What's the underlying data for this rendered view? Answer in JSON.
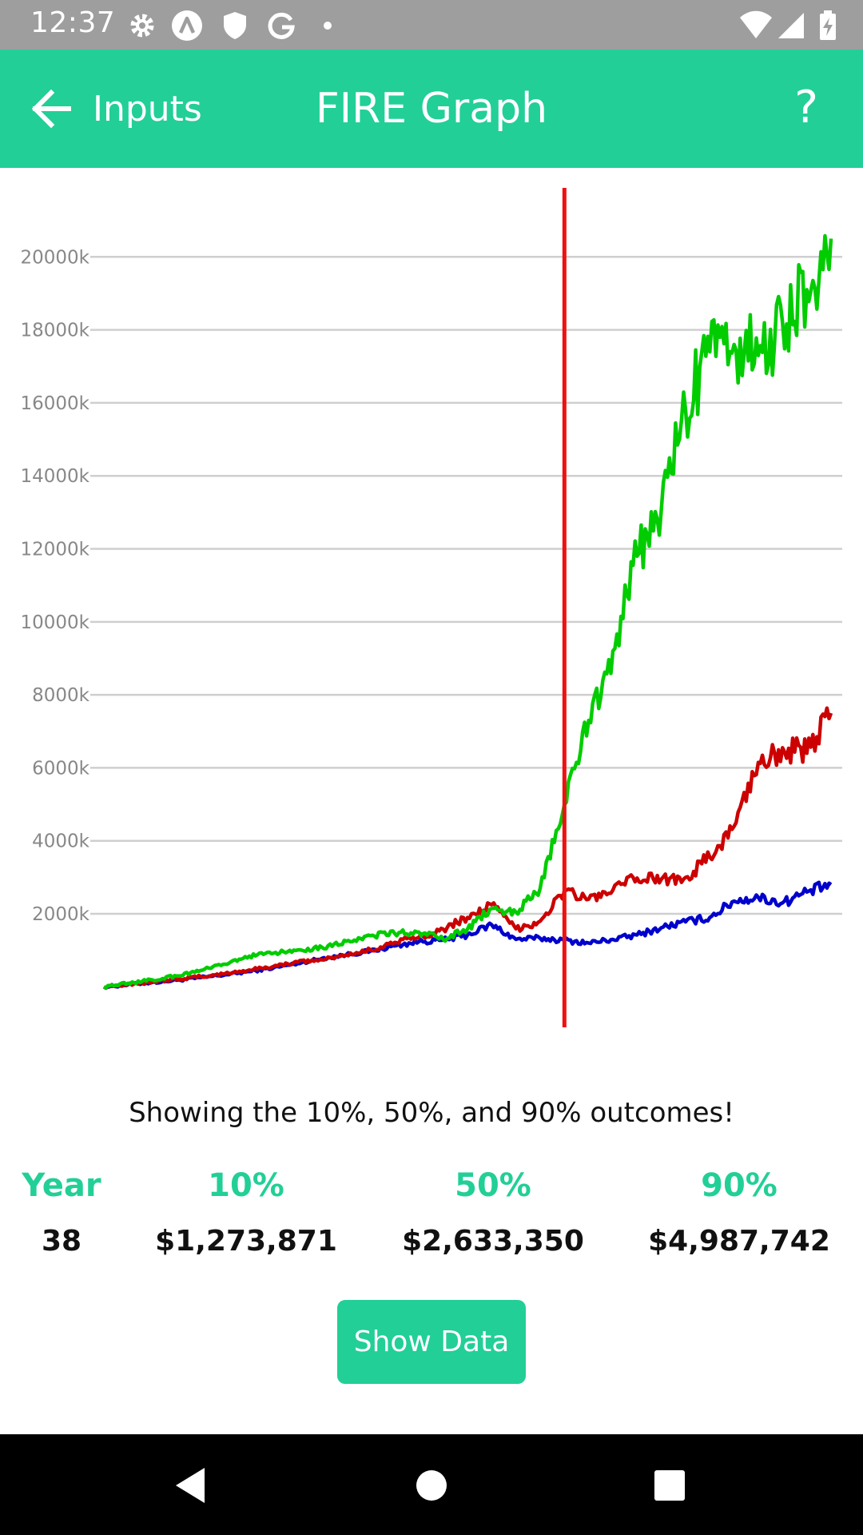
{
  "status_bar": {
    "time": "12:37",
    "icons": [
      "gear-icon",
      "a-circle-icon",
      "shield-icon",
      "google-icon",
      "dot-icon",
      "wifi-icon",
      "signal-icon",
      "battery-charging-icon"
    ]
  },
  "app_bar": {
    "back_label": "Inputs",
    "title": "FIRE Graph",
    "help_label": "?"
  },
  "colors": {
    "accent": "#22cf97",
    "series_10": "#0000cc",
    "series_50": "#cc0000",
    "series_90": "#00cc00",
    "marker": "#ee1111"
  },
  "chart_data": {
    "type": "line",
    "ylim": [
      -1000,
      22000
    ],
    "xlim": [
      0,
      60
    ],
    "y_ticks": [
      2000,
      4000,
      6000,
      8000,
      10000,
      12000,
      14000,
      16000,
      18000,
      20000
    ],
    "y_tick_labels": [
      "2000k",
      "4000k",
      "6000k",
      "8000k",
      "10000k",
      "12000k",
      "14000k",
      "16000k",
      "18000k",
      "20000k"
    ],
    "grid": true,
    "marker_x": 38,
    "x": [
      0,
      2,
      4,
      6,
      8,
      10,
      12,
      14,
      16,
      18,
      20,
      22,
      24,
      26,
      28,
      30,
      32,
      34,
      36,
      38,
      40,
      42,
      44,
      46,
      48,
      50,
      52,
      54,
      56,
      58,
      60
    ],
    "series": [
      {
        "values": [
          0,
          60,
          120,
          180,
          250,
          330,
          420,
          520,
          640,
          780,
          880,
          980,
          1120,
          1240,
          1280,
          1420,
          1700,
          1300,
          1330,
          1274,
          1200,
          1300,
          1420,
          1620,
          1780,
          1900,
          2350,
          2450,
          2300,
          2600,
          2800
        ]
      },
      {
        "values": [
          0,
          70,
          140,
          210,
          280,
          360,
          460,
          560,
          680,
          740,
          870,
          1010,
          1220,
          1360,
          1580,
          1900,
          2250,
          1590,
          1800,
          2633,
          2400,
          2650,
          2980,
          2950,
          3000,
          3550,
          4400,
          6150,
          6550,
          6400,
          7500
        ]
      },
      {
        "values": [
          0,
          100,
          190,
          300,
          450,
          620,
          840,
          920,
          1010,
          1080,
          1250,
          1400,
          1460,
          1500,
          1300,
          1580,
          2150,
          2050,
          2700,
          4988,
          7300,
          9200,
          11800,
          13100,
          15800,
          17400,
          17600,
          17300,
          18200,
          19100,
          20500
        ]
      }
    ]
  },
  "caption": "Showing the 10%, 50%, and 90% outcomes!",
  "table": {
    "headers": [
      "Year",
      "10%",
      "50%",
      "90%"
    ],
    "values": [
      "38",
      "$1,273,871",
      "$2,633,350",
      "$4,987,742"
    ]
  },
  "button": {
    "show_data": "Show Data"
  },
  "nav_bar": {
    "icons": [
      "back-triangle-icon",
      "home-circle-icon",
      "recents-square-icon"
    ]
  }
}
